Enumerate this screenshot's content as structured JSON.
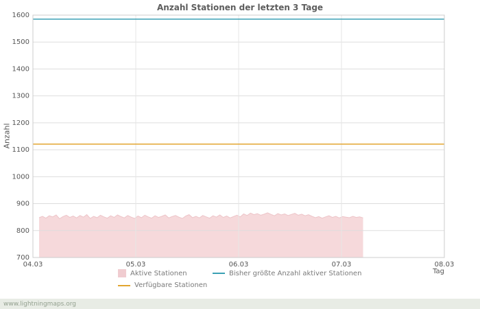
{
  "chart_data": {
    "type": "area",
    "title": "Anzahl Stationen der letzten 3 Tage",
    "xlabel": "Tag",
    "ylabel": "Anzahl",
    "ylim": [
      700,
      1600
    ],
    "ytick_step": 100,
    "yticks": [
      700,
      800,
      900,
      1000,
      1100,
      1200,
      1300,
      1400,
      1500,
      1600
    ],
    "x_ticks": [
      "04.03",
      "05.03",
      "06.03",
      "07.03",
      "08.03"
    ],
    "grid": true,
    "legend_position": "bottom",
    "series": [
      {
        "name": "Aktive Stationen",
        "type": "area",
        "color": "#f6d9db",
        "edge_color": "#edc4c8",
        "x_start": 0.06,
        "x_end": 3.21,
        "values": [
          848,
          853,
          846,
          855,
          851,
          858,
          844,
          852,
          857,
          849,
          854,
          847,
          856,
          850,
          859,
          845,
          853,
          848,
          857,
          851,
          846,
          855,
          849,
          858,
          852,
          847,
          856,
          850,
          845,
          854,
          848,
          857,
          851,
          846,
          855,
          849,
          853,
          858,
          847,
          852,
          856,
          850,
          845,
          854,
          859,
          848,
          853,
          847,
          856,
          851,
          846,
          855,
          850,
          858,
          849,
          854,
          847,
          852,
          857,
          851,
          862,
          856,
          865,
          859,
          863,
          857,
          861,
          866,
          860,
          855,
          863,
          858,
          862,
          856,
          860,
          864,
          857,
          861,
          855,
          859,
          853,
          848,
          852,
          846,
          851,
          855,
          849,
          853,
          847,
          852,
          850,
          848,
          853,
          849,
          851,
          847
        ]
      },
      {
        "name": "Bisher größte Anzahl aktiver Stationen",
        "type": "hline",
        "color": "#3aa0b4",
        "value": 1585
      },
      {
        "name": "Verfügbare Stationen",
        "type": "hline",
        "color": "#e2a52f",
        "value": 1121
      }
    ],
    "legend": [
      {
        "label": "Aktive Stationen",
        "swatch": "area",
        "color": "#f0ccd0"
      },
      {
        "label": "Bisher größte Anzahl aktiver Stationen",
        "swatch": "line",
        "color": "#3aa0b4"
      },
      {
        "label": "Verfügbare Stationen",
        "swatch": "line",
        "color": "#e2a52f"
      }
    ]
  },
  "footer": {
    "watermark": "www.lightningmaps.org"
  }
}
